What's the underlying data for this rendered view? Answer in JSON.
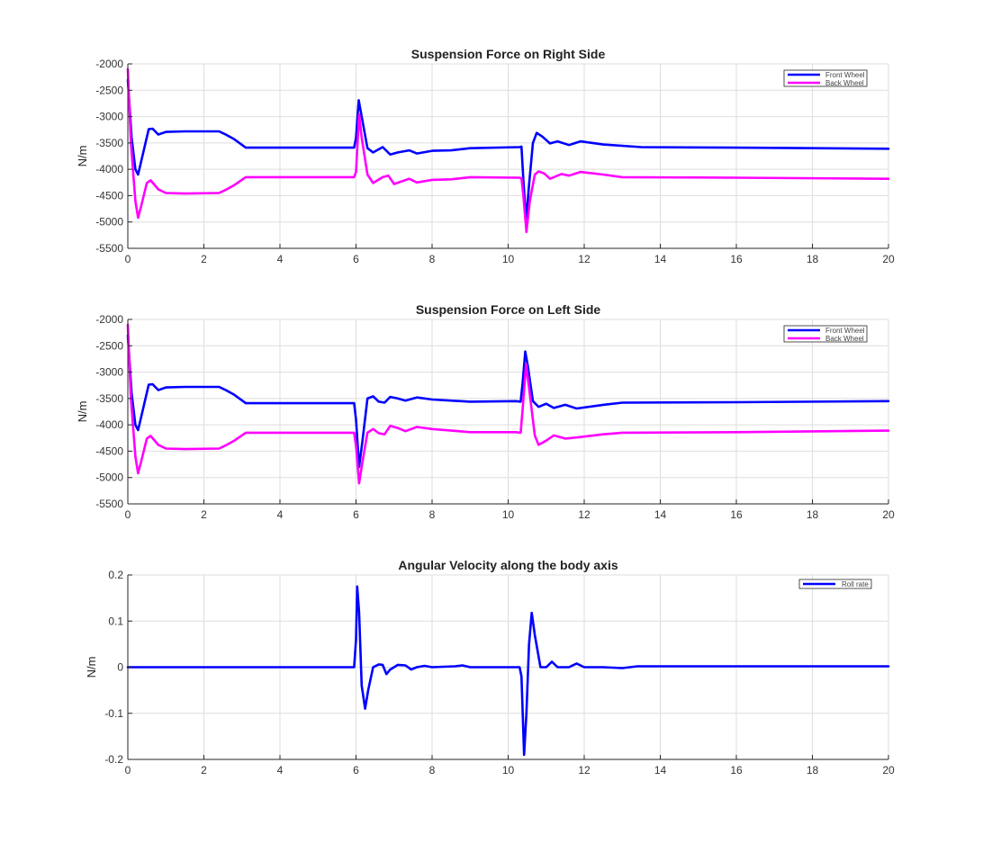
{
  "chart_data": [
    {
      "type": "line",
      "title": "Suspension Force on Right Side",
      "xlabel": "",
      "ylabel": "N/m",
      "xlim": [
        0,
        20
      ],
      "ylim": [
        -5500,
        -2000
      ],
      "xticks": [
        0,
        2,
        4,
        6,
        8,
        10,
        12,
        14,
        16,
        18,
        20
      ],
      "yticks": [
        -2000,
        -2500,
        -3000,
        -3500,
        -4000,
        -4500,
        -5000,
        -5500
      ],
      "grid": true,
      "legend_position": "top-right",
      "series": [
        {
          "name": "Front Wheel",
          "color": "#0000ff",
          "points": [
            [
              0,
              -2300
            ],
            [
              0.1,
              -3400
            ],
            [
              0.2,
              -4000
            ],
            [
              0.27,
              -4100
            ],
            [
              0.4,
              -3700
            ],
            [
              0.55,
              -3240
            ],
            [
              0.65,
              -3230
            ],
            [
              0.8,
              -3340
            ],
            [
              1.0,
              -3290
            ],
            [
              1.5,
              -3280
            ],
            [
              2.4,
              -3280
            ],
            [
              2.6,
              -3350
            ],
            [
              2.8,
              -3430
            ],
            [
              3.1,
              -3590
            ],
            [
              5.95,
              -3590
            ],
            [
              6.0,
              -3400
            ],
            [
              6.07,
              -2690
            ],
            [
              6.15,
              -3000
            ],
            [
              6.3,
              -3600
            ],
            [
              6.45,
              -3680
            ],
            [
              6.7,
              -3580
            ],
            [
              6.9,
              -3720
            ],
            [
              7.1,
              -3680
            ],
            [
              7.4,
              -3640
            ],
            [
              7.6,
              -3700
            ],
            [
              8.0,
              -3650
            ],
            [
              8.5,
              -3640
            ],
            [
              9.0,
              -3600
            ],
            [
              10.3,
              -3580
            ],
            [
              10.35,
              -3570
            ],
            [
              10.4,
              -4200
            ],
            [
              10.47,
              -4970
            ],
            [
              10.55,
              -4300
            ],
            [
              10.65,
              -3500
            ],
            [
              10.75,
              -3310
            ],
            [
              10.9,
              -3380
            ],
            [
              11.1,
              -3510
            ],
            [
              11.3,
              -3470
            ],
            [
              11.6,
              -3540
            ],
            [
              11.9,
              -3470
            ],
            [
              12.5,
              -3530
            ],
            [
              13.5,
              -3580
            ],
            [
              16,
              -3590
            ],
            [
              20,
              -3610
            ]
          ]
        },
        {
          "name": "Back Wheel",
          "color": "#ff00ff",
          "points": [
            [
              0,
              -2100
            ],
            [
              0.08,
              -3500
            ],
            [
              0.2,
              -4600
            ],
            [
              0.27,
              -4920
            ],
            [
              0.35,
              -4700
            ],
            [
              0.5,
              -4260
            ],
            [
              0.6,
              -4210
            ],
            [
              0.8,
              -4380
            ],
            [
              1.0,
              -4450
            ],
            [
              1.5,
              -4460
            ],
            [
              2.4,
              -4450
            ],
            [
              2.6,
              -4380
            ],
            [
              2.8,
              -4300
            ],
            [
              3.1,
              -4150
            ],
            [
              5.95,
              -4150
            ],
            [
              6.0,
              -4050
            ],
            [
              6.08,
              -2960
            ],
            [
              6.15,
              -3400
            ],
            [
              6.3,
              -4100
            ],
            [
              6.45,
              -4260
            ],
            [
              6.7,
              -4150
            ],
            [
              6.85,
              -4120
            ],
            [
              7.0,
              -4280
            ],
            [
              7.4,
              -4180
            ],
            [
              7.6,
              -4250
            ],
            [
              8.0,
              -4200
            ],
            [
              8.5,
              -4190
            ],
            [
              9.0,
              -4150
            ],
            [
              10.3,
              -4160
            ],
            [
              10.35,
              -4170
            ],
            [
              10.4,
              -4500
            ],
            [
              10.48,
              -5190
            ],
            [
              10.57,
              -4600
            ],
            [
              10.7,
              -4100
            ],
            [
              10.8,
              -4040
            ],
            [
              10.95,
              -4080
            ],
            [
              11.1,
              -4180
            ],
            [
              11.4,
              -4090
            ],
            [
              11.6,
              -4120
            ],
            [
              11.9,
              -4050
            ],
            [
              12.5,
              -4100
            ],
            [
              13.0,
              -4150
            ],
            [
              16,
              -4160
            ],
            [
              20,
              -4180
            ]
          ]
        }
      ]
    },
    {
      "type": "line",
      "title": "Suspension Force on Left Side",
      "xlabel": "",
      "ylabel": "N/m",
      "xlim": [
        0,
        20
      ],
      "ylim": [
        -5500,
        -2000
      ],
      "xticks": [
        0,
        2,
        4,
        6,
        8,
        10,
        12,
        14,
        16,
        18,
        20
      ],
      "yticks": [
        -2000,
        -2500,
        -3000,
        -3500,
        -4000,
        -4500,
        -5000,
        -5500
      ],
      "grid": true,
      "legend_position": "top-right",
      "series": [
        {
          "name": "Front Wheel",
          "color": "#0000ff",
          "points": [
            [
              0,
              -2300
            ],
            [
              0.1,
              -3400
            ],
            [
              0.2,
              -4000
            ],
            [
              0.27,
              -4100
            ],
            [
              0.4,
              -3700
            ],
            [
              0.55,
              -3240
            ],
            [
              0.65,
              -3230
            ],
            [
              0.8,
              -3340
            ],
            [
              1.0,
              -3290
            ],
            [
              1.5,
              -3280
            ],
            [
              2.4,
              -3280
            ],
            [
              2.6,
              -3350
            ],
            [
              2.8,
              -3430
            ],
            [
              3.1,
              -3590
            ],
            [
              5.95,
              -3590
            ],
            [
              6.0,
              -3900
            ],
            [
              6.08,
              -4800
            ],
            [
              6.17,
              -4300
            ],
            [
              6.3,
              -3500
            ],
            [
              6.45,
              -3460
            ],
            [
              6.6,
              -3560
            ],
            [
              6.75,
              -3580
            ],
            [
              6.9,
              -3470
            ],
            [
              7.1,
              -3500
            ],
            [
              7.3,
              -3540
            ],
            [
              7.6,
              -3480
            ],
            [
              8.0,
              -3520
            ],
            [
              9.0,
              -3560
            ],
            [
              10.2,
              -3550
            ],
            [
              10.33,
              -3560
            ],
            [
              10.38,
              -3200
            ],
            [
              10.45,
              -2610
            ],
            [
              10.52,
              -2900
            ],
            [
              10.65,
              -3550
            ],
            [
              10.8,
              -3660
            ],
            [
              11.0,
              -3600
            ],
            [
              11.2,
              -3680
            ],
            [
              11.5,
              -3620
            ],
            [
              11.8,
              -3690
            ],
            [
              12.5,
              -3620
            ],
            [
              13.0,
              -3580
            ],
            [
              16,
              -3570
            ],
            [
              20,
              -3550
            ]
          ]
        },
        {
          "name": "Back Wheel",
          "color": "#ff00ff",
          "points": [
            [
              0,
              -2100
            ],
            [
              0.08,
              -3500
            ],
            [
              0.2,
              -4600
            ],
            [
              0.27,
              -4920
            ],
            [
              0.35,
              -4700
            ],
            [
              0.5,
              -4260
            ],
            [
              0.6,
              -4210
            ],
            [
              0.8,
              -4380
            ],
            [
              1.0,
              -4450
            ],
            [
              1.5,
              -4460
            ],
            [
              2.4,
              -4450
            ],
            [
              2.6,
              -4380
            ],
            [
              2.8,
              -4300
            ],
            [
              3.1,
              -4150
            ],
            [
              5.95,
              -4150
            ],
            [
              6.0,
              -4400
            ],
            [
              6.08,
              -5110
            ],
            [
              6.17,
              -4700
            ],
            [
              6.3,
              -4150
            ],
            [
              6.45,
              -4080
            ],
            [
              6.6,
              -4160
            ],
            [
              6.75,
              -4180
            ],
            [
              6.9,
              -4020
            ],
            [
              7.1,
              -4060
            ],
            [
              7.3,
              -4120
            ],
            [
              7.6,
              -4040
            ],
            [
              8.0,
              -4080
            ],
            [
              9.0,
              -4140
            ],
            [
              10.2,
              -4140
            ],
            [
              10.33,
              -4150
            ],
            [
              10.38,
              -3700
            ],
            [
              10.47,
              -2850
            ],
            [
              10.55,
              -3300
            ],
            [
              10.7,
              -4200
            ],
            [
              10.8,
              -4380
            ],
            [
              11.0,
              -4300
            ],
            [
              11.2,
              -4200
            ],
            [
              11.5,
              -4260
            ],
            [
              11.8,
              -4240
            ],
            [
              12.5,
              -4180
            ],
            [
              13.0,
              -4150
            ],
            [
              16,
              -4140
            ],
            [
              20,
              -4110
            ]
          ]
        }
      ]
    },
    {
      "type": "line",
      "title": "Angular Velocity along the body axis",
      "xlabel": "",
      "ylabel": "N/m",
      "xlim": [
        0,
        20
      ],
      "ylim": [
        -0.2,
        0.2
      ],
      "xticks": [
        0,
        2,
        4,
        6,
        8,
        10,
        12,
        14,
        16,
        18,
        20
      ],
      "yticks": [
        0.2,
        0.1,
        0,
        -0.1,
        -0.2
      ],
      "grid": true,
      "legend_position": "top-right",
      "series": [
        {
          "name": "Roll rate",
          "color": "#0000ff",
          "points": [
            [
              0,
              0
            ],
            [
              5.95,
              0
            ],
            [
              6.0,
              0.06
            ],
            [
              6.03,
              0.175
            ],
            [
              6.08,
              0.12
            ],
            [
              6.15,
              -0.04
            ],
            [
              6.24,
              -0.09
            ],
            [
              6.32,
              -0.05
            ],
            [
              6.45,
              0.0
            ],
            [
              6.6,
              0.006
            ],
            [
              6.7,
              0.005
            ],
            [
              6.8,
              -0.015
            ],
            [
              6.9,
              -0.005
            ],
            [
              7.1,
              0.005
            ],
            [
              7.3,
              0.004
            ],
            [
              7.45,
              -0.005
            ],
            [
              7.6,
              0.0
            ],
            [
              7.8,
              0.003
            ],
            [
              8.0,
              0.0
            ],
            [
              8.6,
              0.002
            ],
            [
              8.8,
              0.004
            ],
            [
              9.0,
              0.0
            ],
            [
              10.3,
              0.0
            ],
            [
              10.35,
              -0.02
            ],
            [
              10.42,
              -0.19
            ],
            [
              10.48,
              -0.1
            ],
            [
              10.55,
              0.05
            ],
            [
              10.62,
              0.118
            ],
            [
              10.7,
              0.07
            ],
            [
              10.85,
              0.0
            ],
            [
              11.0,
              0.0
            ],
            [
              11.15,
              0.012
            ],
            [
              11.3,
              0.0
            ],
            [
              11.6,
              0.0
            ],
            [
              11.8,
              0.008
            ],
            [
              12.0,
              0.0
            ],
            [
              12.5,
              0.0
            ],
            [
              13.0,
              -0.002
            ],
            [
              13.4,
              0.002
            ],
            [
              20,
              0.002
            ]
          ]
        }
      ]
    }
  ]
}
